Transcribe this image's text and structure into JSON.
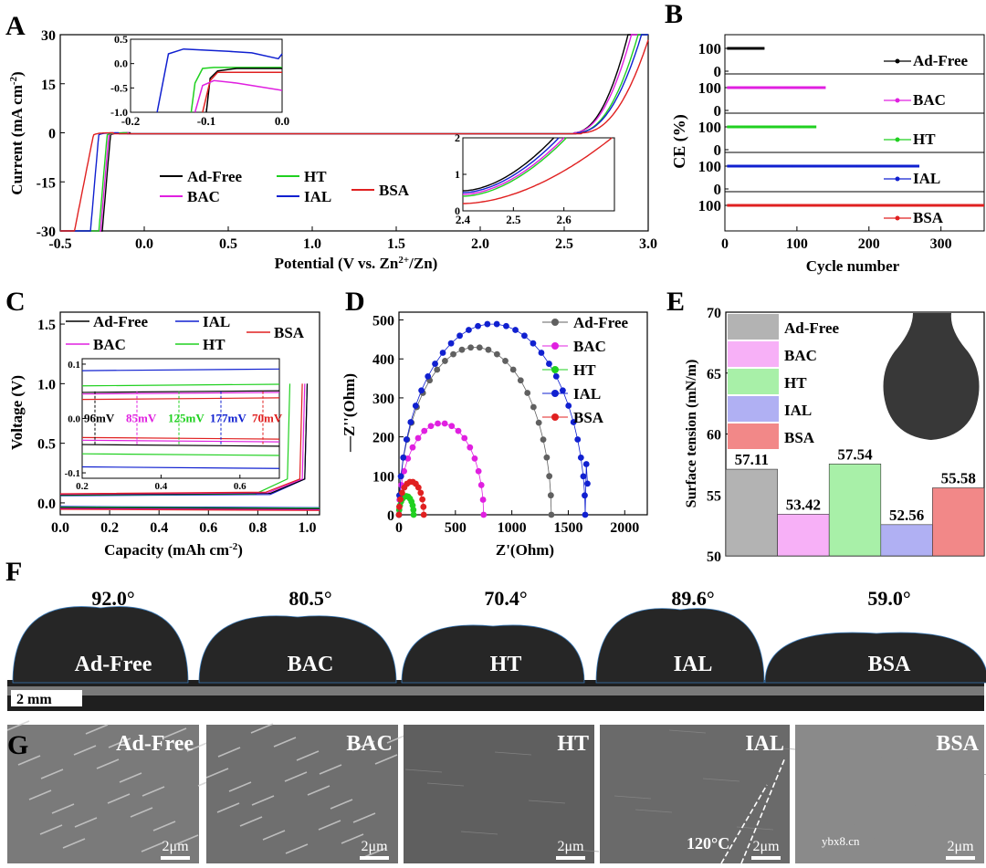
{
  "panel_labels": {
    "A": "A",
    "B": "B",
    "C": "C",
    "D": "D",
    "E": "E",
    "F": "F",
    "G": "G"
  },
  "colors": {
    "ad_free": "#000000",
    "bac": "#e020e0",
    "ht": "#20d020",
    "ial": "#1020d0",
    "bsa": "#e02020",
    "ad_free_d": "#606060"
  },
  "chart_data": [
    {
      "id": "A",
      "type": "line",
      "xlabel": "Potential (V vs. Zn",
      "xlabel_sup": "2+",
      "xlabel_end": "/Zn)",
      "ylabel": "Current (mA cm",
      "ylabel_sup": "-2",
      "ylabel_end": ")",
      "xlim": [
        -0.5,
        3.0
      ],
      "ylim": [
        -30,
        30
      ],
      "xticks": [
        "-0.5",
        "0.0",
        "0.5",
        "1.0",
        "1.5",
        "2.0",
        "2.5",
        "3.0"
      ],
      "yticks": [
        "-30",
        "-15",
        "0",
        "15",
        "30"
      ],
      "legend": [
        "Ad-Free",
        "HT",
        "BAC",
        "IAL",
        "BSA"
      ],
      "series": [
        {
          "name": "Ad-Free",
          "onset_cathodic": -0.2,
          "onset_anodic": 2.55
        },
        {
          "name": "BAC",
          "onset_cathodic": -0.21,
          "onset_anodic": 2.55
        },
        {
          "name": "HT",
          "onset_cathodic": -0.22,
          "onset_anodic": 2.57
        },
        {
          "name": "IAL",
          "onset_cathodic": -0.27,
          "onset_anodic": 2.57
        },
        {
          "name": "BSA",
          "onset_cathodic": -0.3,
          "onset_anodic": 2.6
        }
      ],
      "inset1": {
        "xlim": [
          -0.2,
          0.0
        ],
        "ylim": [
          -1.0,
          0.5
        ],
        "xticks": [
          "-0.2",
          "-0.1",
          "0.0"
        ],
        "yticks": [
          "0.5",
          "0.0",
          "-0.5",
          "-1.0"
        ]
      },
      "inset2": {
        "xlim": [
          2.4,
          2.7
        ],
        "ylim": [
          0,
          2
        ],
        "xticks": [
          "2.4",
          "2.5",
          "2.6"
        ],
        "yticks": [
          "2",
          "1",
          "0"
        ]
      }
    },
    {
      "id": "B",
      "type": "scatter",
      "xlabel": "Cycle number",
      "ylabel": "CE (%)",
      "xlim": [
        0,
        360
      ],
      "xticks": [
        "0",
        "100",
        "200",
        "300"
      ],
      "subplots": [
        {
          "name": "Ad-Free",
          "cycles": 55,
          "ce": 99,
          "ticks": [
            "100",
            "0"
          ]
        },
        {
          "name": "BAC",
          "cycles": 140,
          "ce": 99,
          "ticks": [
            "100",
            "0"
          ]
        },
        {
          "name": "HT",
          "cycles": 127,
          "ce": 99,
          "ticks": [
            "100",
            "0"
          ]
        },
        {
          "name": "IAL",
          "cycles": 270,
          "ce": 99,
          "ticks": [
            "100",
            "0"
          ]
        },
        {
          "name": "BSA",
          "cycles": 360,
          "ce": 99,
          "ticks": [
            "100"
          ]
        }
      ]
    },
    {
      "id": "C",
      "type": "line",
      "xlabel": "Capacity (mAh cm",
      "xlabel_sup": "-2",
      "xlabel_end": ")",
      "ylabel": "Voltage (V)",
      "xlim": [
        0,
        1.05
      ],
      "ylim": [
        -0.1,
        1.6
      ],
      "xticks": [
        "0.0",
        "0.2",
        "0.4",
        "0.6",
        "0.8",
        "1.0"
      ],
      "yticks": [
        "0.0",
        "0.5",
        "1.0",
        "1.5"
      ],
      "legend": [
        "Ad-Free",
        "IAL",
        "BSA",
        "BAC",
        "HT"
      ],
      "inset": {
        "xticks": [
          "0.2",
          "0.4",
          "0.6"
        ],
        "yticks": [
          "0.1",
          "0.0",
          "-0.1"
        ]
      },
      "overpotentials": [
        {
          "name": "Ad-Free",
          "label": "96mV",
          "value": 96
        },
        {
          "name": "BAC",
          "label": "85mV",
          "value": 85
        },
        {
          "name": "HT",
          "label": "125mV",
          "value": 125
        },
        {
          "name": "IAL",
          "label": "177mV",
          "value": 177
        },
        {
          "name": "BSA",
          "label": "70mV",
          "value": 70
        }
      ]
    },
    {
      "id": "D",
      "type": "scatter",
      "xlabel": "Z'(Ohm)",
      "ylabel": "—Z''(Ohm)",
      "xlim": [
        0,
        2200
      ],
      "ylim": [
        0,
        520
      ],
      "xticks": [
        "0",
        "500",
        "1000",
        "1500",
        "2000"
      ],
      "yticks": [
        "0",
        "100",
        "200",
        "300",
        "400",
        "500"
      ],
      "legend": [
        "Ad-Free",
        "BAC",
        "HT",
        "IAL",
        "BSA"
      ],
      "series": [
        {
          "name": "Ad-Free",
          "r_start": 0,
          "r_end": 1350,
          "peak": 430
        },
        {
          "name": "BAC",
          "r_start": 0,
          "r_end": 750,
          "peak": 235
        },
        {
          "name": "HT",
          "r_start": 0,
          "r_end": 130,
          "peak": 48
        },
        {
          "name": "IAL",
          "r_start": 0,
          "r_end": 1650,
          "peak": 490
        },
        {
          "name": "BSA",
          "r_start": 0,
          "r_end": 220,
          "peak": 85
        }
      ]
    },
    {
      "id": "E",
      "type": "bar",
      "ylabel": "Surface tension (mN/m)",
      "ylim": [
        50,
        70
      ],
      "yticks": [
        "50",
        "55",
        "60",
        "65",
        "70"
      ],
      "categories": [
        "Ad-Free",
        "BAC",
        "HT",
        "IAL",
        "BSA"
      ],
      "values": [
        57.11,
        53.42,
        57.54,
        52.56,
        55.58
      ],
      "value_labels": [
        "57.11",
        "53.42",
        "57.54",
        "52.56",
        "55.58"
      ],
      "legend": [
        "Ad-Free",
        "BAC",
        "HT",
        "IAL",
        "BSA"
      ]
    }
  ],
  "panel_F": {
    "angles": [
      "92.0°",
      "80.5°",
      "70.4°",
      "89.6°",
      "59.0°"
    ],
    "names": [
      "Ad-Free",
      "BAC",
      "HT",
      "IAL",
      "BSA"
    ],
    "scale": "2 mm"
  },
  "panel_G": {
    "names": [
      "Ad-Free",
      "BAC",
      "HT",
      "IAL",
      "BSA"
    ],
    "scale": "2μm",
    "annotation": "120°C",
    "watermark": "ybx8.cn"
  }
}
